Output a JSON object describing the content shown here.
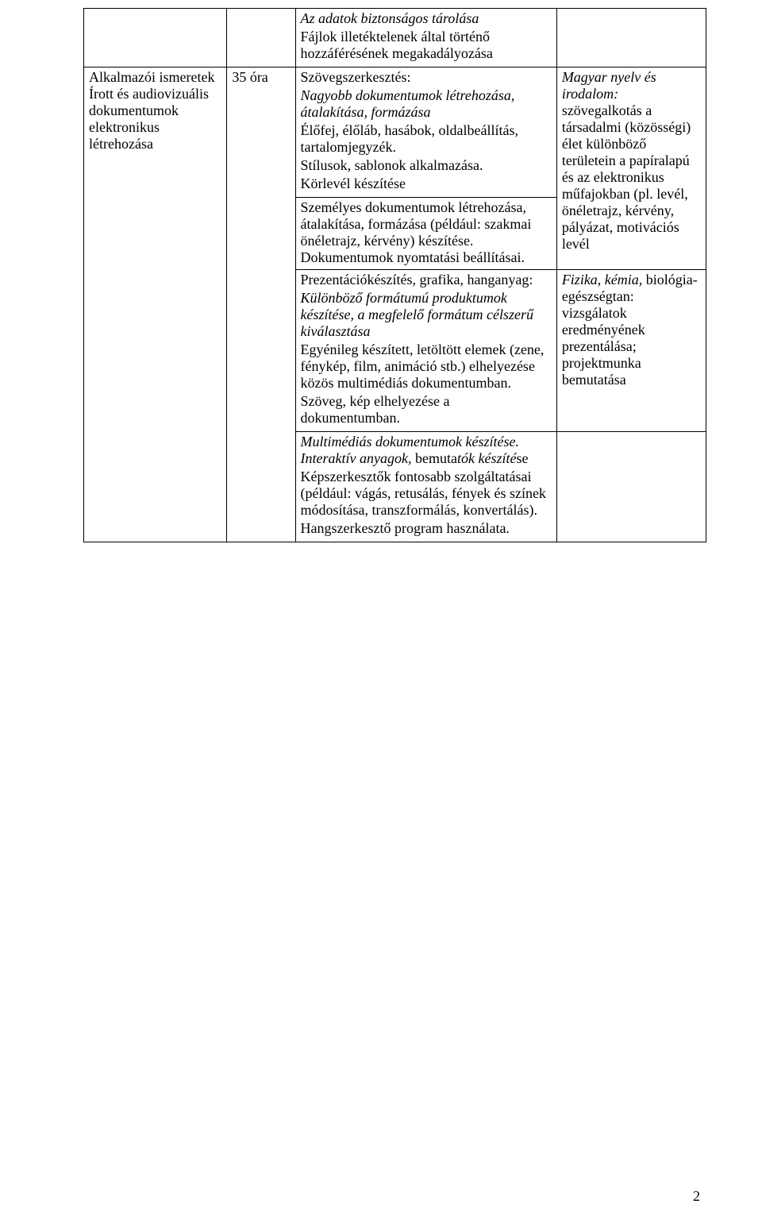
{
  "row1": {
    "c3": {
      "l1_i": "Az adatok biztonságos tárolása",
      "l2": "Fájlok illetéktelenek által történő hozzáférésének megakadályozása"
    }
  },
  "row2": {
    "c1": "Alkalmazói ismeretek Írott és audiovizuális dokumentumok elektronikus létrehozása",
    "c2": "35 óra",
    "c3": {
      "head": "Szövegszerkesztés:",
      "p1_i": "Nagyobb dokumentumok létrehozása, átalakítása, formázása",
      "p2": "Élőfej, élőláb, hasábok, oldalbeállítás, tartalomjegyzék.",
      "p3": "Stílusok, sablonok alkalmazása.",
      "p4": "Körlevél készítése"
    },
    "c4": {
      "p1_i": "Magyar nyelv és irodalom:",
      "p2_a": "szövegalkotás a társadalmi (közösségi) élet különböző területein a papíralapú és az elektronikus műfajokban (pl. levél, önéletrajz, kérvény, pályázat, motivációs levél"
    }
  },
  "row3": {
    "c3": "Személyes dokumentumok létrehozása, átalakítása, formázása (például: szakmai önéletrajz, kérvény) készítése. Dokumentumok nyomtatási beállításai."
  },
  "row4": {
    "c3": {
      "p1": "Prezentációkészítés, grafika, hanganyag:",
      "p2_i": "Különböző formátumú produktumok készítése, a megfelelő formátum célszerű kiválasztása",
      "p3": "Egyénileg készített, letöltött elemek (zene, fénykép, film, animáció stb.) elhelyezése közös multimédiás dokumentumban.",
      "p4": "Szöveg, kép elhelyezése a dokumentumban."
    },
    "c4": {
      "p1_i": "Fizika, kémia,",
      "p2_a": "biológia-egészségtan",
      "p2_b": ": vizsgálatok eredményének prezentálása; projektmunka bemutatása"
    }
  },
  "row5": {
    "c3": {
      "p1_i": "Multimédiás dokumentumok készítése. Interaktív anyagok,",
      "p1_tail": " bemuta",
      "p1_tail_i": "tók készíté",
      "p1_tail2": "se",
      "p2": "Képszerkesztők fontosabb szolgáltatásai (például: vágás, retusálás, fények és színek módosítása, transzformálás, konvertálás).",
      "p3": "Hangszerkesztő program használata."
    }
  },
  "pageNumber": "2"
}
